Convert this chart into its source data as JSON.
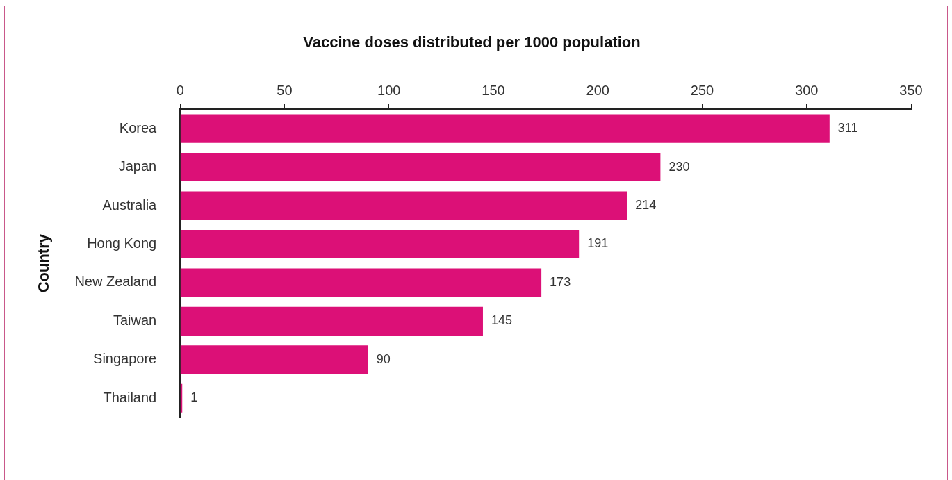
{
  "chart_data": {
    "type": "bar",
    "orientation": "horizontal",
    "title": "Vaccine doses distributed per 1000 population",
    "ylabel": "Country",
    "categories": [
      "Korea",
      "Japan",
      "Australia",
      "Hong Kong",
      "New Zealand",
      "Taiwan",
      "Singapore",
      "Thailand"
    ],
    "values": [
      311,
      230,
      214,
      191,
      173,
      145,
      90,
      1
    ],
    "color": "#dc1077",
    "xlim": [
      0,
      350
    ],
    "xticks": [
      0,
      50,
      100,
      150,
      200,
      250,
      300,
      350
    ],
    "grid": false,
    "legend": false,
    "data_labels": true
  }
}
